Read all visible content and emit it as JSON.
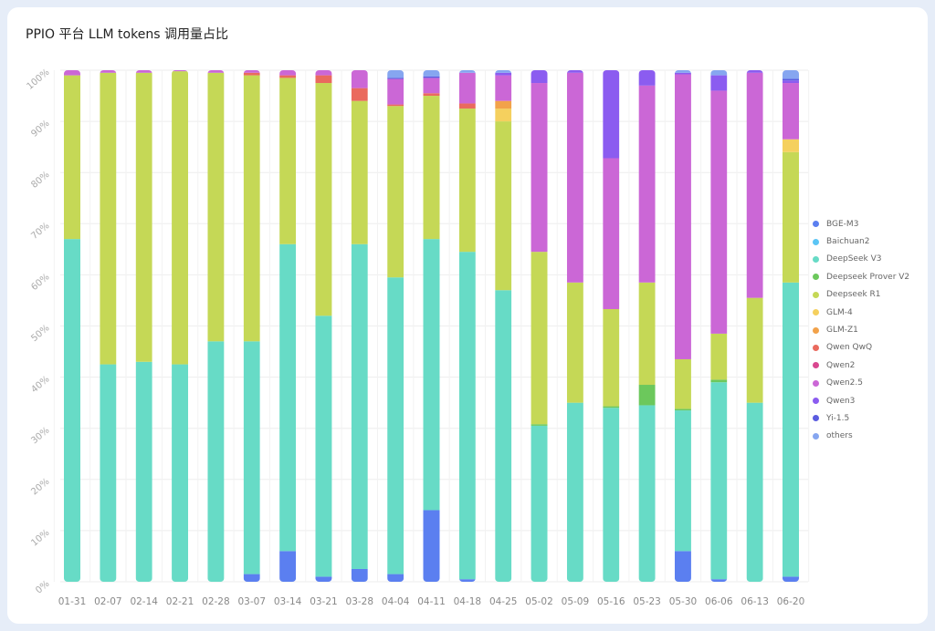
{
  "chart_data": {
    "type": "bar",
    "stacked": "percent",
    "title": "PPIO 平台 LLM tokens 调用量占比",
    "xlabel": "",
    "ylabel": "",
    "ylim": [
      0,
      100
    ],
    "yticks": [
      "0%",
      "10%",
      "20%",
      "30%",
      "40%",
      "50%",
      "60%",
      "70%",
      "80%",
      "90%",
      "100%"
    ],
    "legend_position": "right",
    "categories": [
      "01-31",
      "02-07",
      "02-14",
      "02-21",
      "02-28",
      "03-07",
      "03-14",
      "03-21",
      "03-28",
      "04-04",
      "04-11",
      "04-18",
      "04-25",
      "05-02",
      "05-09",
      "05-16",
      "05-23",
      "05-30",
      "06-06",
      "06-13",
      "06-20"
    ],
    "series": [
      {
        "name": "BGE-M3",
        "color": "#5b7ff0",
        "values": [
          0,
          0,
          0,
          0,
          0,
          1.5,
          6,
          1,
          2.5,
          1.5,
          14,
          0.5,
          0,
          0,
          0,
          0,
          0,
          6,
          0.5,
          0,
          1
        ]
      },
      {
        "name": "Baichuan2",
        "color": "#5bc5f5",
        "values": [
          0,
          0,
          0,
          0,
          0,
          0,
          0,
          0,
          0,
          0,
          0,
          0,
          0,
          0,
          0,
          0,
          0,
          0,
          0,
          0,
          0
        ]
      },
      {
        "name": "DeepSeek V3",
        "color": "#67dbc6",
        "values": [
          67,
          42.5,
          43,
          42.5,
          47,
          45.5,
          60,
          51,
          63.5,
          58,
          53,
          64,
          57,
          30.5,
          35,
          34,
          34.5,
          27.5,
          38.5,
          35,
          57.5
        ]
      },
      {
        "name": "Deepseek Prover V2",
        "color": "#6cc85c",
        "values": [
          0,
          0,
          0,
          0,
          0,
          0,
          0,
          0,
          0,
          0,
          0,
          0,
          0,
          0.3,
          0,
          0.3,
          4,
          0.3,
          0.5,
          0,
          0
        ]
      },
      {
        "name": "Deepseek R1",
        "color": "#c5d856",
        "values": [
          32,
          57,
          56.5,
          57.3,
          52.5,
          52,
          32.5,
          45.5,
          28,
          33.5,
          28,
          28,
          33,
          33.7,
          23.5,
          19,
          20,
          9.7,
          9,
          20.5,
          25.5
        ]
      },
      {
        "name": "GLM-4",
        "color": "#f5d05e",
        "values": [
          0,
          0,
          0,
          0,
          0,
          0,
          0,
          0,
          0,
          0,
          0,
          0,
          2.5,
          0,
          0,
          0,
          0,
          0,
          0,
          0,
          2.5
        ]
      },
      {
        "name": "GLM-Z1",
        "color": "#f2a24a",
        "values": [
          0,
          0,
          0,
          0,
          0,
          0,
          0,
          0,
          0,
          0,
          0,
          0,
          1.5,
          0,
          0,
          0,
          0,
          0,
          0,
          0,
          0
        ]
      },
      {
        "name": "Qwen QwQ",
        "color": "#ea6a5e",
        "values": [
          0,
          0,
          0,
          0,
          0,
          0.5,
          0.5,
          1.5,
          2.5,
          0.3,
          0.5,
          1,
          0,
          0,
          0,
          0,
          0,
          0,
          0,
          0,
          0
        ]
      },
      {
        "name": "Qwen2",
        "color": "#d9478f",
        "values": [
          0,
          0,
          0,
          0,
          0,
          0,
          0,
          0,
          0,
          0,
          0,
          0,
          0,
          0,
          0,
          0,
          0,
          0,
          0,
          0,
          0
        ]
      },
      {
        "name": "Qwen2.5",
        "color": "#cb67d6",
        "values": [
          1,
          0.5,
          0.5,
          0.2,
          0.5,
          0.5,
          1,
          1,
          3.5,
          5,
          3,
          6,
          5,
          33,
          41,
          29.5,
          38.5,
          55.7,
          47.5,
          44,
          11
        ]
      },
      {
        "name": "Qwen3",
        "color": "#8b5cf0",
        "values": [
          0,
          0,
          0,
          0,
          0,
          0,
          0,
          0,
          0,
          0,
          0,
          0,
          0.5,
          2.5,
          0.5,
          17.2,
          3,
          0.3,
          3,
          0.5,
          0.5
        ]
      },
      {
        "name": "Yi-1.5",
        "color": "#5b5ce0",
        "values": [
          0,
          0,
          0,
          0,
          0,
          0,
          0,
          0,
          0,
          0.2,
          0.3,
          0,
          0,
          0,
          0,
          0,
          0,
          0,
          0,
          0,
          0.3
        ]
      },
      {
        "name": "others",
        "color": "#86a6f0",
        "values": [
          0,
          0,
          0,
          0,
          0,
          0,
          0,
          0,
          0,
          1.5,
          1.2,
          0.5,
          0.5,
          0,
          0,
          0,
          0,
          0.5,
          1,
          0,
          1.7
        ]
      }
    ]
  }
}
